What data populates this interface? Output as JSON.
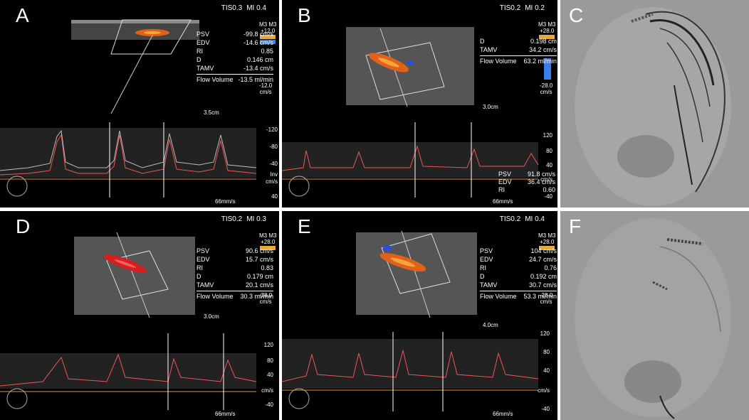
{
  "panels": {
    "A": {
      "letter": "A",
      "tis": "TIS0.3",
      "mi": "MI 0.4",
      "meas": [
        [
          "PSV",
          "-99.8 cm/s"
        ],
        [
          "EDV",
          "-14.6 cm/s"
        ],
        [
          "RI",
          "0.85"
        ],
        [
          "D",
          "0.146 cm"
        ],
        [
          "TAMV",
          "-13.4 cm/s"
        ]
      ],
      "flow": [
        "Flow Volume",
        "-13.5 ml/min"
      ],
      "scale_top": "+12.0",
      "scale_bottom": "-12.0",
      "scale_unit": "cm/s",
      "scale_m": "M3 M3",
      "depth": "3.5cm",
      "speed": "66mm/s",
      "axis": [
        "-120",
        "-80",
        "-40",
        "Inv",
        "cm/s",
        "40"
      ]
    },
    "B": {
      "letter": "B",
      "tis": "TIS0.2",
      "mi": "MI 0.2",
      "meas": [
        [
          "D",
          "0.198 cm"
        ],
        [
          "TAMV",
          "34.2 cm/s"
        ]
      ],
      "flow": [
        "Flow Volume",
        "63.2 ml/min"
      ],
      "scale_top": "+28.0",
      "scale_bottom": "-28.0",
      "scale_unit": "cm/s",
      "scale_m": "M3 M3",
      "depth": "3.0cm",
      "speed": "66mm/s",
      "axis": [
        "120",
        "80",
        "40",
        "cm/s",
        "-40"
      ],
      "spec": [
        [
          "PSV",
          "91.8 cm/s"
        ],
        [
          "EDV",
          "36.4 cm/s"
        ],
        [
          "RI",
          "0.60"
        ]
      ]
    },
    "C": {
      "letter": "C"
    },
    "D": {
      "letter": "D",
      "tis": "TIS0.2",
      "mi": "MI 0.3",
      "meas": [
        [
          "PSV",
          "90.6 cm/s"
        ],
        [
          "EDV",
          "15.7 cm/s"
        ],
        [
          "RI",
          "0.83"
        ],
        [
          "D",
          "0.179 cm"
        ],
        [
          "TAMV",
          "20.1 cm/s"
        ]
      ],
      "flow": [
        "Flow Volume",
        "30.3 ml/min"
      ],
      "scale_top": "+28.0",
      "scale_bottom": "-28.0",
      "scale_unit": "cm/s",
      "scale_m": "M3 M3",
      "depth": "3.0cm",
      "speed": "66mm/s",
      "axis": [
        "120",
        "80",
        "40",
        "cm/s",
        "-40"
      ]
    },
    "E": {
      "letter": "E",
      "tis": "TIS0.2",
      "mi": "MI 0.4",
      "meas": [
        [
          "PSV",
          "104 cm/s"
        ],
        [
          "EDV",
          "24.7 cm/s"
        ],
        [
          "RI",
          "0.76"
        ],
        [
          "D",
          "0.192 cm"
        ],
        [
          "TAMV",
          "30.7 cm/s"
        ]
      ],
      "flow": [
        "Flow Volume",
        "53.3 ml/min"
      ],
      "scale_top": "+28.0",
      "scale_bottom": "-28.0",
      "scale_unit": "cm/s",
      "scale_m": "M3 M3",
      "depth": "4.0cm",
      "speed": "66mm/s",
      "axis": [
        "120",
        "80",
        "40",
        "cm/s",
        "-40"
      ]
    },
    "F": {
      "letter": "F"
    }
  }
}
